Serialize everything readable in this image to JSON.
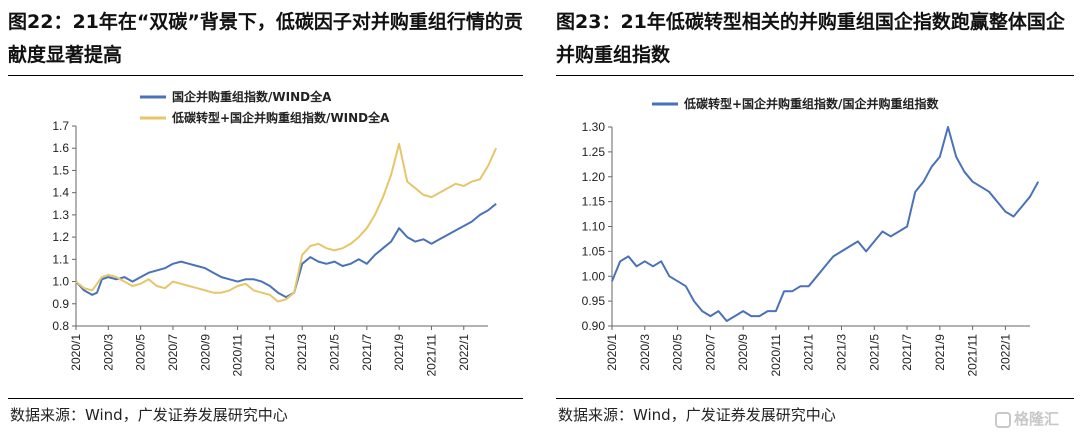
{
  "left": {
    "title": "图22：21年在“双碳”背景下，低碳因子对并购重组行情的贡献度显著提高",
    "source": "数据来源：Wind，广发证券发展研究中心",
    "chart_data": {
      "type": "line",
      "legend_position": "top",
      "ylim": [
        0.8,
        1.7
      ],
      "yticks": [
        "0.8",
        "0.9",
        "1.0",
        "1.1",
        "1.2",
        "1.3",
        "1.4",
        "1.5",
        "1.6",
        "1.7"
      ],
      "xticks": [
        "2020/1",
        "2020/3",
        "2020/5",
        "2020/7",
        "2020/9",
        "2020/11",
        "2021/1",
        "2021/3",
        "2021/5",
        "2021/7",
        "2021/9",
        "2021/11",
        "2022/1"
      ],
      "colors": [
        "#4A72B8",
        "#E6C66B"
      ],
      "series": [
        {
          "name": "国企并购重组指数/WIND全A",
          "points": [
            [
              0,
              1.0
            ],
            [
              0.5,
              0.96
            ],
            [
              1,
              0.94
            ],
            [
              1.3,
              0.95
            ],
            [
              1.6,
              1.01
            ],
            [
              2,
              1.02
            ],
            [
              2.5,
              1.01
            ],
            [
              3,
              1.02
            ],
            [
              3.5,
              1.0
            ],
            [
              4,
              1.02
            ],
            [
              4.5,
              1.04
            ],
            [
              5,
              1.05
            ],
            [
              5.5,
              1.06
            ],
            [
              6,
              1.08
            ],
            [
              6.5,
              1.09
            ],
            [
              7,
              1.08
            ],
            [
              7.5,
              1.07
            ],
            [
              8,
              1.06
            ],
            [
              8.5,
              1.04
            ],
            [
              9,
              1.02
            ],
            [
              9.5,
              1.01
            ],
            [
              10,
              1.0
            ],
            [
              10.5,
              1.01
            ],
            [
              11,
              1.01
            ],
            [
              11.5,
              1.0
            ],
            [
              12,
              0.98
            ],
            [
              12.5,
              0.95
            ],
            [
              13,
              0.93
            ],
            [
              13.5,
              0.95
            ],
            [
              14,
              1.08
            ],
            [
              14.5,
              1.11
            ],
            [
              15,
              1.09
            ],
            [
              15.5,
              1.08
            ],
            [
              16,
              1.09
            ],
            [
              16.5,
              1.07
            ],
            [
              17,
              1.08
            ],
            [
              17.5,
              1.1
            ],
            [
              18,
              1.08
            ],
            [
              18.5,
              1.12
            ],
            [
              19,
              1.15
            ],
            [
              19.5,
              1.18
            ],
            [
              20,
              1.24
            ],
            [
              20.5,
              1.2
            ],
            [
              21,
              1.18
            ],
            [
              21.5,
              1.19
            ],
            [
              22,
              1.17
            ],
            [
              22.5,
              1.19
            ],
            [
              23,
              1.21
            ],
            [
              23.5,
              1.23
            ],
            [
              24,
              1.25
            ],
            [
              24.5,
              1.27
            ],
            [
              25,
              1.3
            ],
            [
              25.5,
              1.32
            ],
            [
              26,
              1.35
            ]
          ]
        },
        {
          "name": "低碳转型+国企并购重组指数/WIND全A",
          "points": [
            [
              0,
              1.0
            ],
            [
              0.5,
              0.97
            ],
            [
              1,
              0.96
            ],
            [
              1.3,
              0.99
            ],
            [
              1.6,
              1.02
            ],
            [
              2,
              1.03
            ],
            [
              2.5,
              1.02
            ],
            [
              3,
              1.0
            ],
            [
              3.5,
              0.98
            ],
            [
              4,
              0.99
            ],
            [
              4.5,
              1.01
            ],
            [
              5,
              0.98
            ],
            [
              5.5,
              0.97
            ],
            [
              6,
              1.0
            ],
            [
              6.5,
              0.99
            ],
            [
              7,
              0.98
            ],
            [
              7.5,
              0.97
            ],
            [
              8,
              0.96
            ],
            [
              8.5,
              0.95
            ],
            [
              9,
              0.95
            ],
            [
              9.5,
              0.96
            ],
            [
              10,
              0.98
            ],
            [
              10.5,
              0.99
            ],
            [
              11,
              0.96
            ],
            [
              11.5,
              0.95
            ],
            [
              12,
              0.94
            ],
            [
              12.5,
              0.91
            ],
            [
              13,
              0.92
            ],
            [
              13.5,
              0.95
            ],
            [
              14,
              1.12
            ],
            [
              14.5,
              1.16
            ],
            [
              15,
              1.17
            ],
            [
              15.5,
              1.15
            ],
            [
              16,
              1.14
            ],
            [
              16.5,
              1.15
            ],
            [
              17,
              1.17
            ],
            [
              17.5,
              1.2
            ],
            [
              18,
              1.24
            ],
            [
              18.5,
              1.3
            ],
            [
              19,
              1.38
            ],
            [
              19.5,
              1.48
            ],
            [
              20,
              1.62
            ],
            [
              20.5,
              1.45
            ],
            [
              21,
              1.42
            ],
            [
              21.5,
              1.39
            ],
            [
              22,
              1.38
            ],
            [
              22.5,
              1.4
            ],
            [
              23,
              1.42
            ],
            [
              23.5,
              1.44
            ],
            [
              24,
              1.43
            ],
            [
              24.5,
              1.45
            ],
            [
              25,
              1.46
            ],
            [
              25.5,
              1.52
            ],
            [
              26,
              1.6
            ]
          ]
        }
      ]
    }
  },
  "right": {
    "title": "图23：21年低碳转型相关的并购重组国企指数跑赢整体国企并购重组指数",
    "source": "数据来源：Wind，广发证券发展研究中心",
    "chart_data": {
      "type": "line",
      "legend_position": "top",
      "ylim": [
        0.9,
        1.3
      ],
      "yticks": [
        "0.90",
        "0.95",
        "1.00",
        "1.05",
        "1.10",
        "1.15",
        "1.20",
        "1.25",
        "1.30"
      ],
      "xticks": [
        "2020/1",
        "2020/3",
        "2020/5",
        "2020/7",
        "2020/9",
        "2020/11",
        "2021/1",
        "2021/3",
        "2021/5",
        "2021/7",
        "2021/9",
        "2021/11",
        "2022/1"
      ],
      "colors": [
        "#4A72B8"
      ],
      "series": [
        {
          "name": "低碳转型+国企并购重组指数/国企并购重组指数",
          "points": [
            [
              0,
              0.99
            ],
            [
              0.5,
              1.03
            ],
            [
              1,
              1.04
            ],
            [
              1.5,
              1.02
            ],
            [
              2,
              1.03
            ],
            [
              2.5,
              1.02
            ],
            [
              3,
              1.03
            ],
            [
              3.5,
              1.0
            ],
            [
              4,
              0.99
            ],
            [
              4.5,
              0.98
            ],
            [
              5,
              0.95
            ],
            [
              5.5,
              0.93
            ],
            [
              6,
              0.92
            ],
            [
              6.5,
              0.93
            ],
            [
              7,
              0.91
            ],
            [
              7.5,
              0.92
            ],
            [
              8,
              0.93
            ],
            [
              8.5,
              0.92
            ],
            [
              9,
              0.92
            ],
            [
              9.5,
              0.93
            ],
            [
              10,
              0.93
            ],
            [
              10.5,
              0.97
            ],
            [
              11,
              0.97
            ],
            [
              11.5,
              0.98
            ],
            [
              12,
              0.98
            ],
            [
              12.5,
              1.0
            ],
            [
              13,
              1.02
            ],
            [
              13.5,
              1.04
            ],
            [
              14,
              1.05
            ],
            [
              14.5,
              1.06
            ],
            [
              15,
              1.07
            ],
            [
              15.5,
              1.05
            ],
            [
              16,
              1.07
            ],
            [
              16.5,
              1.09
            ],
            [
              17,
              1.08
            ],
            [
              17.5,
              1.09
            ],
            [
              18,
              1.1
            ],
            [
              18.5,
              1.17
            ],
            [
              19,
              1.19
            ],
            [
              19.5,
              1.22
            ],
            [
              20,
              1.24
            ],
            [
              20.5,
              1.3
            ],
            [
              21,
              1.24
            ],
            [
              21.5,
              1.21
            ],
            [
              22,
              1.19
            ],
            [
              22.5,
              1.18
            ],
            [
              23,
              1.17
            ],
            [
              23.5,
              1.15
            ],
            [
              24,
              1.13
            ],
            [
              24.5,
              1.12
            ],
            [
              25,
              1.14
            ],
            [
              25.5,
              1.16
            ],
            [
              26,
              1.19
            ]
          ]
        }
      ]
    }
  },
  "watermark": "格隆汇"
}
